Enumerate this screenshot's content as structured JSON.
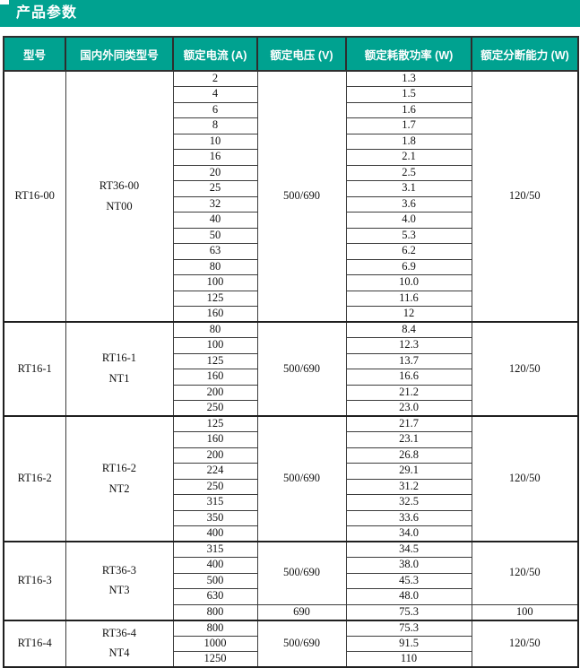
{
  "page": {
    "title": "产品参数"
  },
  "colors": {
    "accent": "#00a290",
    "header_text": "#ffffff",
    "grid_border": "#3c3c3c",
    "section_border": "#1f1f1f"
  },
  "table": {
    "headers": [
      "型号",
      "国内外同类型号",
      "额定电流 (A)",
      "额定电压 (V)",
      "额定耗散功率 (W)",
      "额定分断能力 (W)"
    ],
    "sections": [
      {
        "model": "RT16-00",
        "equivalent": [
          "RT36-00",
          "NT00"
        ],
        "groups": [
          {
            "voltage": "500/690",
            "breaking": "120/50",
            "rows": [
              {
                "current": "2",
                "power": "1.3"
              },
              {
                "current": "4",
                "power": "1.5"
              },
              {
                "current": "6",
                "power": "1.6"
              },
              {
                "current": "8",
                "power": "1.7"
              },
              {
                "current": "10",
                "power": "1.8"
              },
              {
                "current": "16",
                "power": "2.1"
              },
              {
                "current": "20",
                "power": "2.5"
              },
              {
                "current": "25",
                "power": "3.1"
              },
              {
                "current": "32",
                "power": "3.6"
              },
              {
                "current": "40",
                "power": "4.0"
              },
              {
                "current": "50",
                "power": "5.3"
              },
              {
                "current": "63",
                "power": "6.2"
              },
              {
                "current": "80",
                "power": "6.9"
              },
              {
                "current": "100",
                "power": "10.0"
              },
              {
                "current": "125",
                "power": "11.6"
              },
              {
                "current": "160",
                "power": "12"
              }
            ]
          }
        ]
      },
      {
        "model": "RT16-1",
        "equivalent": [
          "RT16-1",
          "NT1"
        ],
        "groups": [
          {
            "voltage": "500/690",
            "breaking": "120/50",
            "rows": [
              {
                "current": "80",
                "power": "8.4"
              },
              {
                "current": "100",
                "power": "12.3"
              },
              {
                "current": "125",
                "power": "13.7"
              },
              {
                "current": "160",
                "power": "16.6"
              },
              {
                "current": "200",
                "power": "21.2"
              },
              {
                "current": "250",
                "power": "23.0"
              }
            ]
          }
        ]
      },
      {
        "model": "RT16-2",
        "equivalent": [
          "RT16-2",
          "NT2"
        ],
        "groups": [
          {
            "voltage": "500/690",
            "breaking": "120/50",
            "rows": [
              {
                "current": "125",
                "power": "21.7"
              },
              {
                "current": "160",
                "power": "23.1"
              },
              {
                "current": "200",
                "power": "26.8"
              },
              {
                "current": "224",
                "power": "29.1"
              },
              {
                "current": "250",
                "power": "31.2"
              },
              {
                "current": "315",
                "power": "32.5"
              },
              {
                "current": "350",
                "power": "33.6"
              },
              {
                "current": "400",
                "power": "34.0"
              }
            ]
          }
        ]
      },
      {
        "model": "RT16-3",
        "equivalent": [
          "RT36-3",
          "NT3"
        ],
        "groups": [
          {
            "voltage": "500/690",
            "breaking": "120/50",
            "rows": [
              {
                "current": "315",
                "power": "34.5"
              },
              {
                "current": "400",
                "power": "38.0"
              },
              {
                "current": "500",
                "power": "45.3"
              },
              {
                "current": "630",
                "power": "48.0"
              }
            ]
          },
          {
            "voltage": "690",
            "breaking": "100",
            "rows": [
              {
                "current": "800",
                "power": "75.3"
              }
            ]
          }
        ]
      },
      {
        "model": "RT16-4",
        "equivalent": [
          "RT36-4",
          "NT4"
        ],
        "groups": [
          {
            "voltage": "500/690",
            "breaking": "120/50",
            "rows": [
              {
                "current": "800",
                "power": "75.3"
              },
              {
                "current": "1000",
                "power": "91.5"
              },
              {
                "current": "1250",
                "power": "110"
              }
            ]
          }
        ]
      }
    ]
  }
}
